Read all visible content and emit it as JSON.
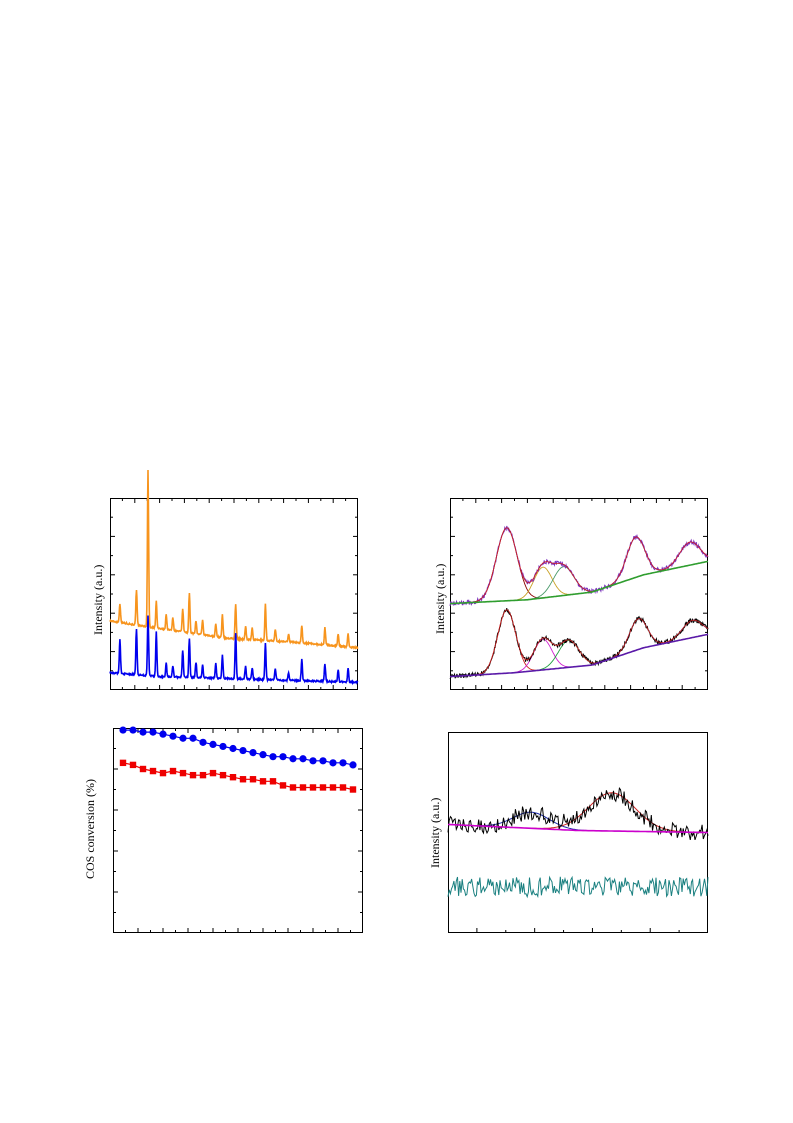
{
  "chart_data": [
    {
      "id": "xrd",
      "type": "line",
      "title": "",
      "xlabel": "",
      "ylabel": "Intensity (a.u.)",
      "xlim": [
        5,
        80
      ],
      "ylim": [
        0,
        100
      ],
      "colors": [
        "#f7941d",
        "#0000ee"
      ],
      "series": [
        {
          "color": "#f7941d",
          "baseline": [
            [
              5,
              36
            ],
            [
              20,
              32
            ],
            [
              40,
              27
            ],
            [
              60,
              25
            ],
            [
              80,
              22
            ]
          ],
          "peaks": [
            [
              8,
              10
            ],
            [
              13,
              18
            ],
            [
              16.5,
              82
            ],
            [
              19,
              14
            ],
            [
              22,
              8
            ],
            [
              24,
              7
            ],
            [
              27,
              12
            ],
            [
              29,
              21
            ],
            [
              31,
              7
            ],
            [
              33,
              8
            ],
            [
              37,
              7
            ],
            [
              39,
              12
            ],
            [
              43,
              18
            ],
            [
              46,
              7
            ],
            [
              48,
              6
            ],
            [
              52,
              19
            ],
            [
              55,
              6
            ],
            [
              59,
              4
            ],
            [
              63,
              9
            ],
            [
              70,
              9
            ],
            [
              74,
              6
            ],
            [
              77,
              7
            ]
          ]
        },
        {
          "color": "#0000ee",
          "baseline": [
            [
              5,
              9
            ],
            [
              20,
              7
            ],
            [
              40,
              6
            ],
            [
              60,
              5
            ],
            [
              80,
              4
            ]
          ],
          "peaks": [
            [
              8,
              18
            ],
            [
              13,
              24
            ],
            [
              16.5,
              31
            ],
            [
              19,
              23
            ],
            [
              22,
              7
            ],
            [
              24,
              6
            ],
            [
              27,
              14
            ],
            [
              29,
              20
            ],
            [
              31,
              8
            ],
            [
              33,
              7
            ],
            [
              37,
              8
            ],
            [
              39,
              12
            ],
            [
              43,
              24
            ],
            [
              46,
              7
            ],
            [
              48,
              6
            ],
            [
              52,
              19
            ],
            [
              55,
              6
            ],
            [
              59,
              4
            ],
            [
              63,
              11
            ],
            [
              70,
              9
            ],
            [
              74,
              6
            ],
            [
              77,
              7
            ]
          ]
        }
      ]
    },
    {
      "id": "xps",
      "type": "line",
      "title": "",
      "xlabel": "",
      "ylabel": "Intensity (a.u.)",
      "xlim": [
        0,
        10
      ],
      "ylim": [
        0,
        100
      ],
      "grid": false,
      "spectra": [
        {
          "data_color": "#7b2fbe",
          "background_color": "#2f9e2f",
          "background": [
            [
              0,
              45
            ],
            [
              3,
              47
            ],
            [
              5.5,
              51
            ],
            [
              7.5,
              60
            ],
            [
              10,
              67
            ]
          ],
          "components": [
            {
              "center": 2.2,
              "height": 38,
              "width": 0.4,
              "color": "#8b0000"
            },
            {
              "center": 3.6,
              "height": 16,
              "width": 0.35,
              "color": "#c9a227"
            },
            {
              "center": 4.4,
              "height": 15,
              "width": 0.4,
              "color": "#4a9a6a"
            },
            {
              "center": 7.2,
              "height": 21,
              "width": 0.35,
              "color": "#6a5acd"
            },
            {
              "center": 9.3,
              "height": 12,
              "width": 0.4,
              "color": "#d04080"
            }
          ]
        },
        {
          "data_color": "#000000",
          "background_color": "#5a1aa8",
          "background": [
            [
              0,
              7
            ],
            [
              2.5,
              9
            ],
            [
              5.5,
              13
            ],
            [
              7.5,
              22
            ],
            [
              10,
              29
            ]
          ],
          "components": [
            {
              "center": 2.2,
              "height": 33,
              "width": 0.35,
              "color": "#cc2020"
            },
            {
              "center": 3.6,
              "height": 16,
              "width": 0.35,
              "color": "#d020d0"
            },
            {
              "center": 4.6,
              "height": 14,
              "width": 0.4,
              "color": "#20a040"
            },
            {
              "center": 7.3,
              "height": 16,
              "width": 0.35,
              "color": "#1a2aa8"
            },
            {
              "center": 9.4,
              "height": 9,
              "width": 0.4,
              "color": "#1a2aa8"
            }
          ]
        }
      ]
    },
    {
      "id": "cos",
      "type": "line",
      "title": "",
      "xlabel": "",
      "ylabel": "COS conversion (%)",
      "xlim": [
        0,
        500
      ],
      "ylim": [
        0,
        100
      ],
      "series": [
        {
          "color": "#0000ee",
          "marker": "circle",
          "x": [
            20,
            40,
            60,
            80,
            100,
            120,
            140,
            160,
            180,
            200,
            220,
            240,
            260,
            280,
            300,
            320,
            340,
            360,
            380,
            400,
            420,
            440,
            460,
            480
          ],
          "y": [
            99,
            99,
            98,
            98,
            97,
            96,
            95,
            95,
            93,
            92,
            91,
            90,
            89,
            88,
            87,
            86,
            86,
            85,
            85,
            84,
            84,
            83,
            83,
            82
          ]
        },
        {
          "color": "#ee0000",
          "marker": "square",
          "x": [
            20,
            40,
            60,
            80,
            100,
            120,
            140,
            160,
            180,
            200,
            220,
            240,
            260,
            280,
            300,
            320,
            340,
            360,
            380,
            400,
            420,
            440,
            460,
            480
          ],
          "y": [
            83,
            82,
            80,
            79,
            78,
            79,
            78,
            77,
            77,
            78,
            77,
            76,
            75,
            75,
            74,
            74,
            72,
            71,
            71,
            71,
            71,
            71,
            71,
            70
          ]
        }
      ]
    },
    {
      "id": "noise",
      "type": "line",
      "title": "",
      "xlabel": "",
      "ylabel": "Intensity (a.u.)",
      "xlim": [
        0,
        10
      ],
      "ylim": [
        0,
        100
      ],
      "spectra": [
        {
          "data_color": "#000000",
          "noise": 8,
          "base": 53,
          "background": [
            [
              0,
              54
            ],
            [
              5,
              51
            ],
            [
              10,
              50
            ]
          ],
          "background_color": "#cc00cc",
          "components": [
            {
              "center": 3.2,
              "height": 8,
              "width": 0.7,
              "color": "#1a2aa8"
            },
            {
              "center": 6.3,
              "height": 19,
              "width": 0.9,
              "color": "#cc2020"
            }
          ]
        },
        {
          "data_color": "#1a8080",
          "noise": 10,
          "base": 23,
          "background": [],
          "components": []
        }
      ]
    }
  ]
}
